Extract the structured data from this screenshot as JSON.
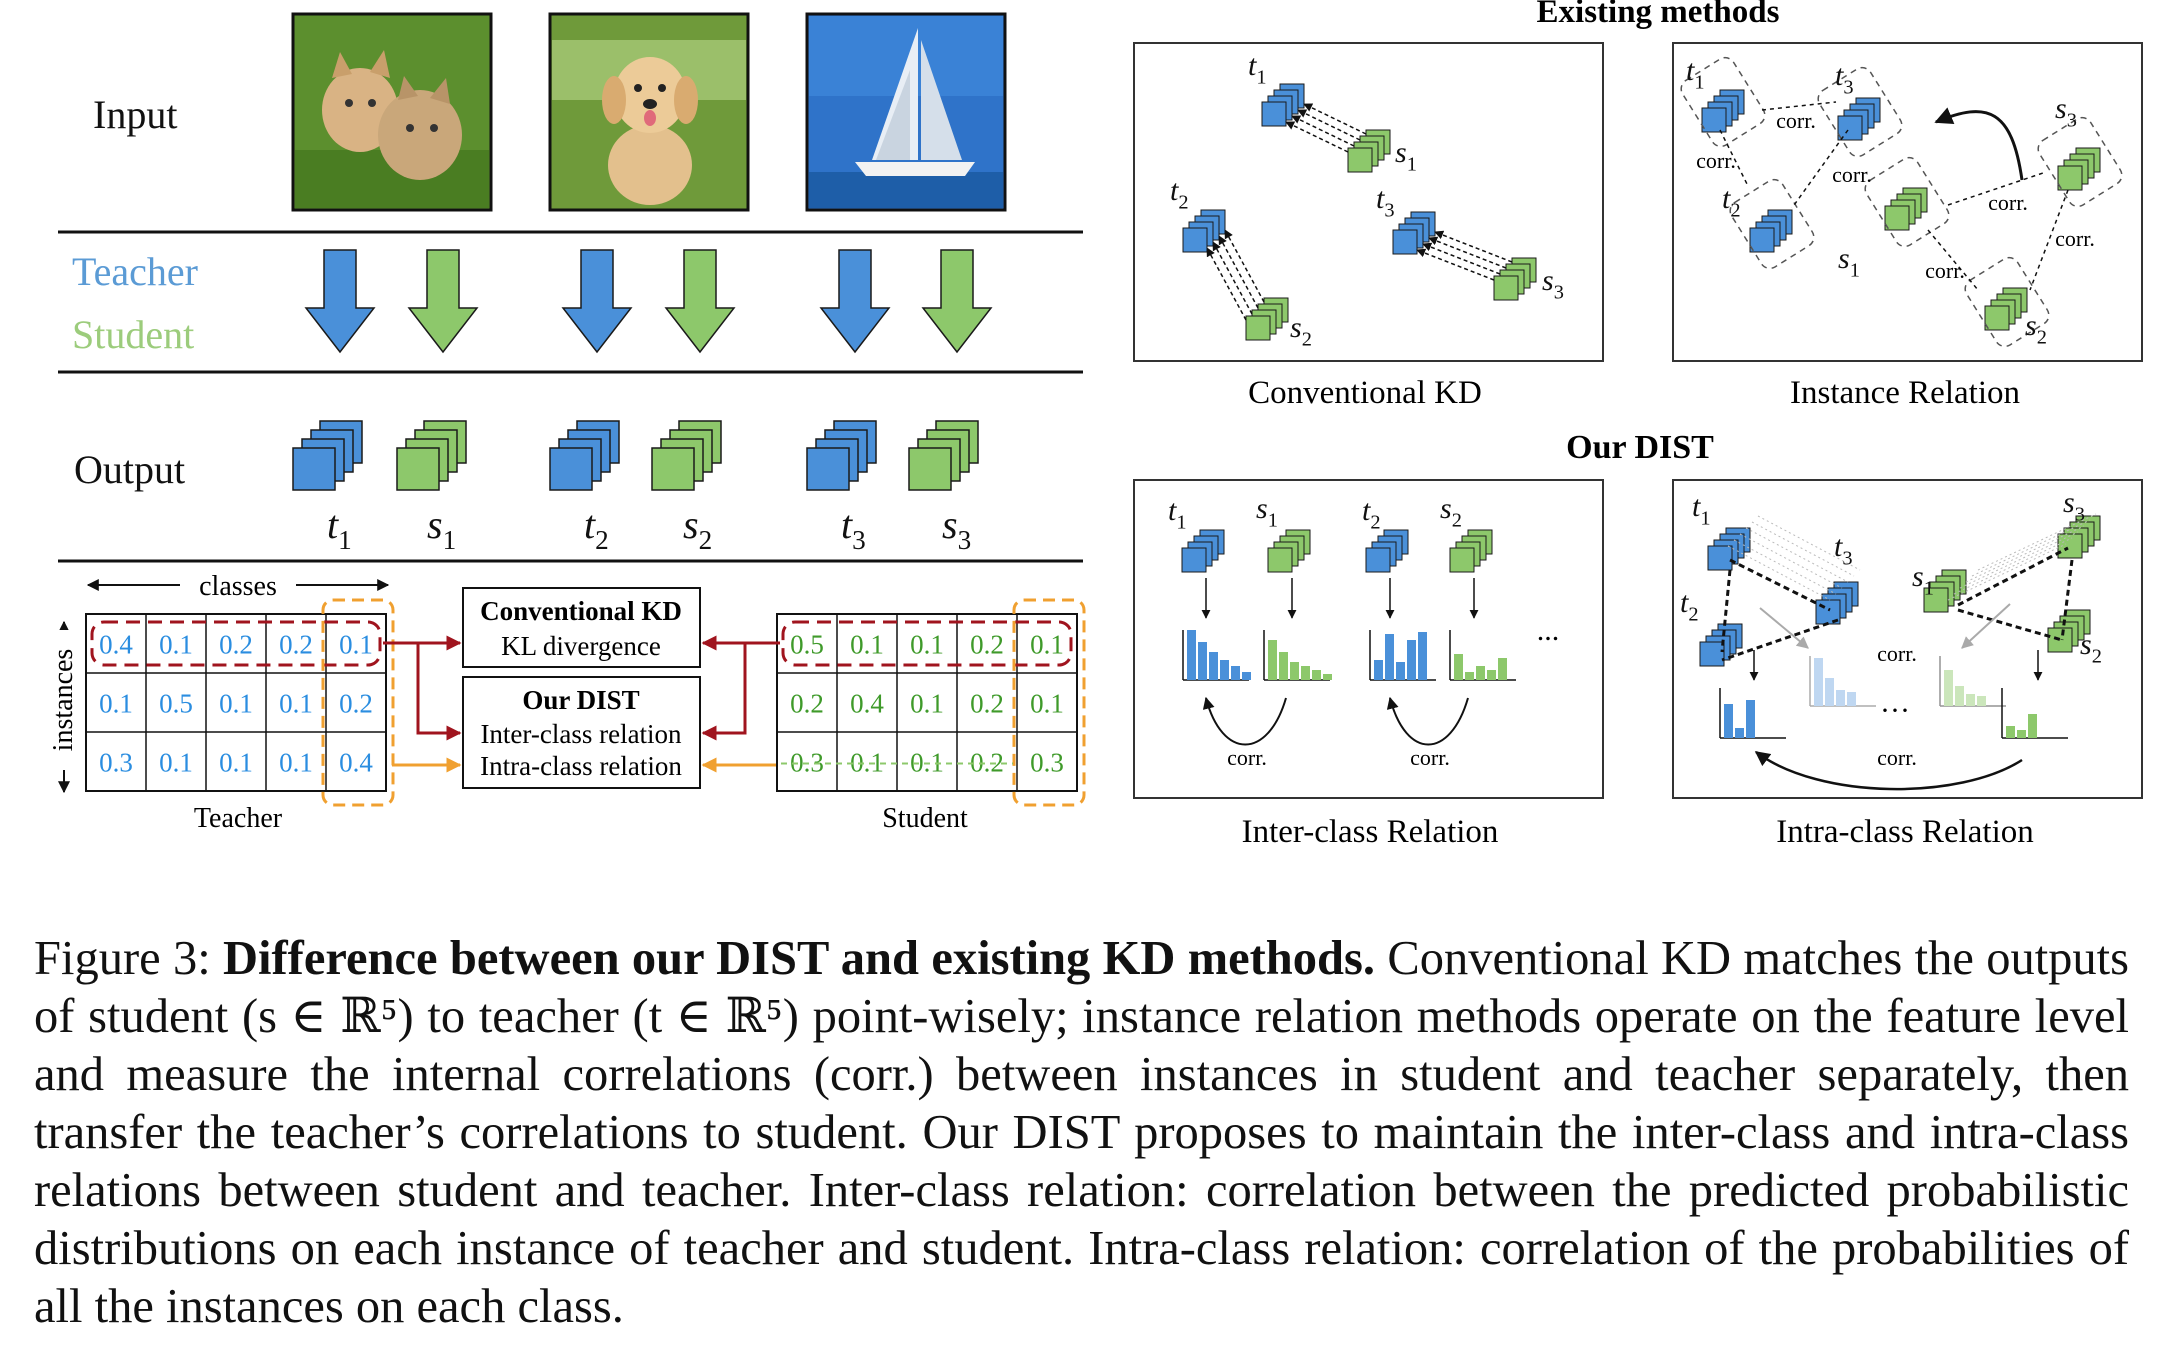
{
  "left_panel": {
    "row_labels": {
      "input": "Input",
      "teacher": "Teacher",
      "student": "Student",
      "output": "Output"
    },
    "output_labels": [
      {
        "base": "t",
        "sub": "1"
      },
      {
        "base": "s",
        "sub": "1"
      },
      {
        "base": "t",
        "sub": "2"
      },
      {
        "base": "s",
        "sub": "2"
      },
      {
        "base": "t",
        "sub": "3"
      },
      {
        "base": "s",
        "sub": "3"
      }
    ],
    "images": [
      "kittens-photo",
      "dog-photo",
      "sailboat-photo"
    ],
    "classes_label": "classes",
    "instances_label": "instances",
    "teacher_matrix": [
      [
        "0.4",
        "0.1",
        "0.2",
        "0.2",
        "0.1"
      ],
      [
        "0.1",
        "0.5",
        "0.1",
        "0.1",
        "0.2"
      ],
      [
        "0.3",
        "0.1",
        "0.1",
        "0.1",
        "0.4"
      ]
    ],
    "student_matrix": [
      [
        "0.5",
        "0.1",
        "0.1",
        "0.2",
        "0.1"
      ],
      [
        "0.2",
        "0.4",
        "0.1",
        "0.2",
        "0.1"
      ],
      [
        "0.3",
        "0.1",
        "0.1",
        "0.2",
        "0.3"
      ]
    ],
    "teacher_label": "Teacher",
    "student_label": "Student",
    "conventional_box": {
      "title": "Conventional KD",
      "subtitle": "KL divergence"
    },
    "dist_box": {
      "title": "Our DIST",
      "line1": "Inter-class relation",
      "line2": "Intra-class relation"
    }
  },
  "right_panel": {
    "existing_title": "Existing methods",
    "our_title": "Our DIST",
    "panels": {
      "conventional_kd": "Conventional KD",
      "instance_relation": "Instance Relation",
      "inter_class": "Inter-class Relation",
      "intra_class": "Intra-class Relation"
    },
    "corr_label": "corr.",
    "ellipsis": "...",
    "cdots": "···"
  },
  "colors": {
    "teacher_blue": "#4a90d9",
    "teacher_text": "#5b9bd5",
    "student_green": "#8dc86b",
    "student_text": "#9ccc7c",
    "dark_red": "#a0141e",
    "orange": "#f0a030"
  },
  "caption": {
    "label": "Figure 3:",
    "bold": "Difference between our DIST and existing KD methods.",
    "text": "Conventional KD matches the outputs of student (s ∈ ℝ⁵) to teacher (t ∈ ℝ⁵) point-wisely; instance relation methods operate on the feature level and measure the internal correlations (corr.) between instances in student and teacher separately, then transfer the teacher’s correlations to student. Our DIST proposes to maintain the inter-class and intra-class relations between student and teacher. Inter-class relation: correlation between the predicted probabilistic distributions on each instance of teacher and student. Intra-class relation: correlation of the probabilities of all the instances on each class."
  }
}
